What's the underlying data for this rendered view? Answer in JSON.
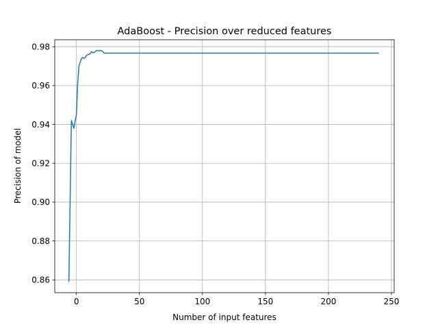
{
  "chart_data": {
    "type": "line",
    "title": "AdaBoost - Precision over reduced features",
    "xlabel": "Number of input features",
    "ylabel": "Precision of model",
    "xlim": [
      -17.2,
      252.2
    ],
    "ylim": [
      0.8534,
      0.9836
    ],
    "xticks": [
      0,
      50,
      100,
      150,
      200,
      250
    ],
    "yticks": [
      0.86,
      0.88,
      0.9,
      0.92,
      0.94,
      0.96,
      0.98
    ],
    "xtick_labels": [
      "0",
      "50",
      "100",
      "150",
      "200",
      "250"
    ],
    "ytick_labels": [
      "0.86",
      "0.88",
      "0.90",
      "0.92",
      "0.94",
      "0.96",
      "0.98"
    ],
    "grid": true,
    "line_color": "#1f77b4",
    "series": [
      {
        "x": [
          -6,
          -4,
          -2,
          -1,
          0,
          1,
          2,
          3,
          4,
          5,
          6,
          7,
          8,
          9,
          10,
          11,
          12,
          13,
          14,
          15,
          16,
          17,
          18,
          19,
          20,
          21,
          22,
          240
        ],
        "y": [
          0.859,
          0.942,
          0.938,
          0.942,
          0.945,
          0.961,
          0.97,
          0.972,
          0.974,
          0.9745,
          0.974,
          0.9745,
          0.9755,
          0.976,
          0.976,
          0.9765,
          0.9775,
          0.977,
          0.977,
          0.9775,
          0.978,
          0.978,
          0.978,
          0.978,
          0.978,
          0.9775,
          0.9767,
          0.9767
        ]
      }
    ]
  }
}
